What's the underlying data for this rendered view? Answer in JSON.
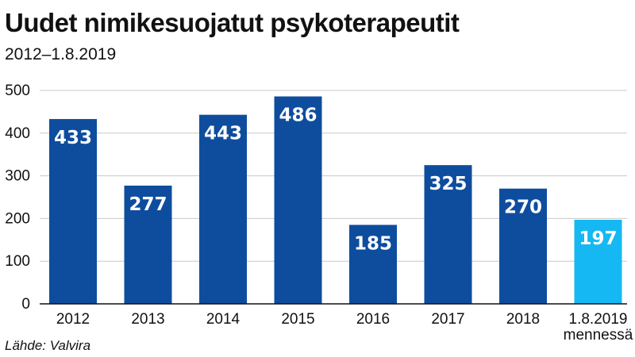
{
  "chart_data": {
    "type": "bar",
    "title": "Uudet nimikesuojatut psykoterapeutit",
    "subtitle": "2012–1.8.2019",
    "source": "Lähde: Valvira",
    "categories": [
      [
        "2012"
      ],
      [
        "2013"
      ],
      [
        "2014"
      ],
      [
        "2015"
      ],
      [
        "2016"
      ],
      [
        "2017"
      ],
      [
        "2018"
      ],
      [
        "1.8.2019",
        "mennessä"
      ]
    ],
    "values": [
      433,
      277,
      443,
      486,
      185,
      325,
      270,
      197
    ],
    "data_labels": [
      "433",
      "277",
      "443",
      "486",
      "185",
      "325",
      "270",
      "197"
    ],
    "yticks": [
      0,
      100,
      200,
      300,
      400,
      500
    ],
    "ylim": [
      0,
      500
    ],
    "grid": true,
    "colors": {
      "bar": "#0e4d9e",
      "highlight": "#15b8f2",
      "grid": "#c8c8c8",
      "axis": "#111111"
    },
    "highlight_index": 7
  }
}
